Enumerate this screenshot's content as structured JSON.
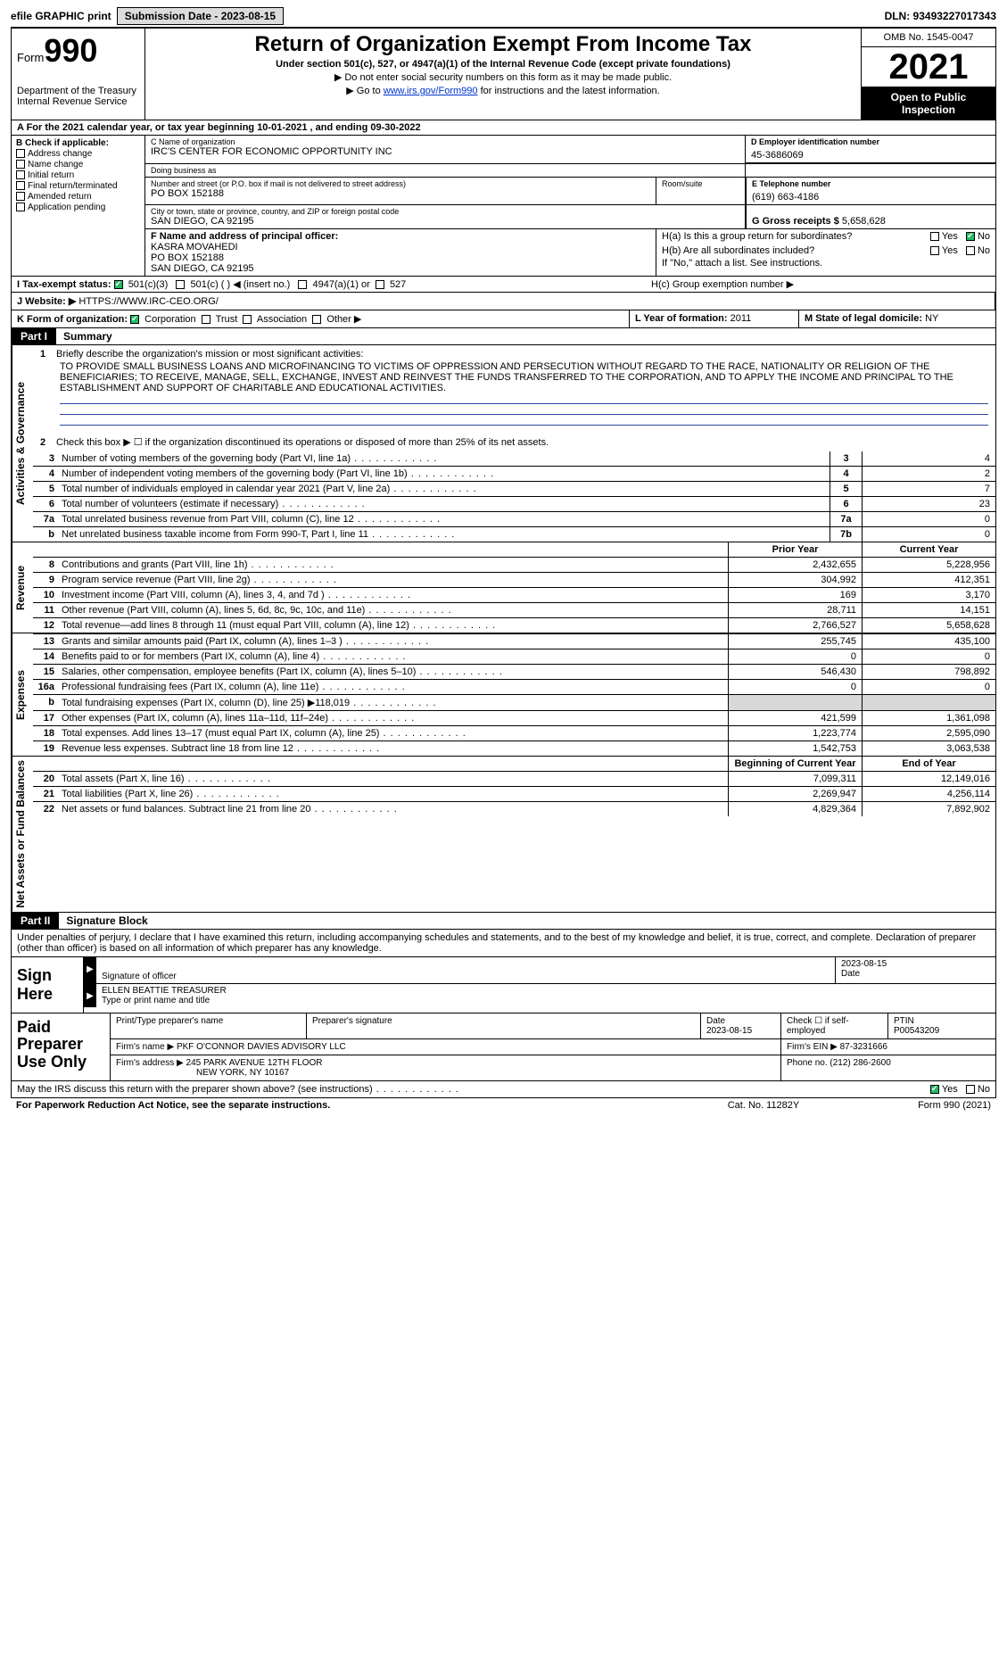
{
  "topbar": {
    "efile": "efile GRAPHIC print",
    "submission": "Submission Date - 2023-08-15",
    "dln": "DLN: 93493227017343"
  },
  "header": {
    "form_prefix": "Form",
    "form_no": "990",
    "dept": "Department of the Treasury",
    "irs": "Internal Revenue Service",
    "title": "Return of Organization Exempt From Income Tax",
    "sub": "Under section 501(c), 527, or 4947(a)(1) of the Internal Revenue Code (except private foundations)",
    "note1": "Do not enter social security numbers on this form as it may be made public.",
    "note2_pre": "Go to ",
    "note2_link": "www.irs.gov/Form990",
    "note2_post": " for instructions and the latest information.",
    "omb": "OMB No. 1545-0047",
    "year": "2021",
    "open": "Open to Public Inspection"
  },
  "row_a": "A  For the 2021 calendar year, or tax year beginning 10-01-2021     , and ending 09-30-2022",
  "col_b": {
    "hdr": "B Check if applicable:",
    "addr_change": "Address change",
    "name_change": "Name change",
    "initial": "Initial return",
    "final": "Final return/terminated",
    "amended": "Amended return",
    "app_pending": "Application pending"
  },
  "block_c": {
    "name_lbl": "C Name of organization",
    "name": "IRC'S CENTER FOR ECONOMIC OPPORTUNITY INC",
    "dba_lbl": "Doing business as",
    "dba": "",
    "addr_lbl": "Number and street (or P.O. box if mail is not delivered to street address)",
    "addr": "PO BOX 152188",
    "suite_lbl": "Room/suite",
    "city_lbl": "City or town, state or province, country, and ZIP or foreign postal code",
    "city": "SAN DIEGO, CA  92195"
  },
  "block_d": {
    "lbl": "D Employer identification number",
    "val": "45-3686069"
  },
  "block_e": {
    "lbl": "E Telephone number",
    "val": "(619) 663-4186"
  },
  "block_g": {
    "lbl": "G Gross receipts $",
    "val": "5,658,628"
  },
  "block_f": {
    "lbl": "F  Name and address of principal officer:",
    "name": "KASRA MOVAHEDI",
    "addr1": "PO BOX 152188",
    "addr2": "SAN DIEGO, CA  92195"
  },
  "block_h": {
    "ha": "H(a)  Is this a group return for subordinates?",
    "hb": "H(b)  Are all subordinates included?",
    "hb_note": "If \"No,\" attach a list. See instructions.",
    "hc": "H(c)  Group exemption number ▶",
    "yes": "Yes",
    "no": "No"
  },
  "row_i": {
    "lbl": "I   Tax-exempt status:",
    "o1": "501(c)(3)",
    "o2": "501(c) (  ) ◀ (insert no.)",
    "o3": "4947(a)(1) or",
    "o4": "527"
  },
  "row_j": {
    "lbl": "J   Website: ▶",
    "val": "HTTPS://WWW.IRC-CEO.ORG/"
  },
  "row_k": {
    "lbl": "K Form of organization:",
    "corp": "Corporation",
    "trust": "Trust",
    "assoc": "Association",
    "other": "Other ▶"
  },
  "row_l": {
    "lbl": "L Year of formation:",
    "val": "2011"
  },
  "row_m": {
    "lbl": "M State of legal domicile:",
    "val": "NY"
  },
  "part1": {
    "tab": "Part I",
    "title": "Summary"
  },
  "summary": {
    "vlabels": {
      "ag": "Activities & Governance",
      "rev": "Revenue",
      "exp": "Expenses",
      "nab": "Net Assets or Fund Balances"
    },
    "l1_lbl": "Briefly describe the organization's mission or most significant activities:",
    "l1_txt": "TO PROVIDE SMALL BUSINESS LOANS AND MICROFINANCING TO VICTIMS OF OPPRESSION AND PERSECUTION WITHOUT REGARD TO THE RACE, NATIONALITY OR RELIGION OF THE BENEFICIARIES; TO RECEIVE, MANAGE, SELL, EXCHANGE, INVEST AND REINVEST THE FUNDS TRANSFERRED TO THE CORPORATION, AND TO APPLY THE INCOME AND PRINCIPAL TO THE ESTABLISHMENT AND SUPPORT OF CHARITABLE AND EDUCATIONAL ACTIVITIES.",
    "l2": "Check this box ▶ ☐  if the organization discontinued its operations or disposed of more than 25% of its net assets.",
    "lines": [
      {
        "n": "3",
        "d": "Number of voting members of the governing body (Part VI, line 1a)",
        "box": "3",
        "v": "4"
      },
      {
        "n": "4",
        "d": "Number of independent voting members of the governing body (Part VI, line 1b)",
        "box": "4",
        "v": "2"
      },
      {
        "n": "5",
        "d": "Total number of individuals employed in calendar year 2021 (Part V, line 2a)",
        "box": "5",
        "v": "7"
      },
      {
        "n": "6",
        "d": "Total number of volunteers (estimate if necessary)",
        "box": "6",
        "v": "23"
      },
      {
        "n": "7a",
        "d": "Total unrelated business revenue from Part VIII, column (C), line 12",
        "box": "7a",
        "v": "0"
      },
      {
        "n": "b",
        "d": "Net unrelated business taxable income from Form 990-T, Part I, line 11",
        "box": "7b",
        "v": "0"
      }
    ],
    "col_hdr_prior": "Prior Year",
    "col_hdr_curr": "Current Year",
    "rev": [
      {
        "n": "8",
        "d": "Contributions and grants (Part VIII, line 1h)",
        "pv": "2,432,655",
        "v": "5,228,956"
      },
      {
        "n": "9",
        "d": "Program service revenue (Part VIII, line 2g)",
        "pv": "304,992",
        "v": "412,351"
      },
      {
        "n": "10",
        "d": "Investment income (Part VIII, column (A), lines 3, 4, and 7d )",
        "pv": "169",
        "v": "3,170"
      },
      {
        "n": "11",
        "d": "Other revenue (Part VIII, column (A), lines 5, 6d, 8c, 9c, 10c, and 11e)",
        "pv": "28,711",
        "v": "14,151"
      },
      {
        "n": "12",
        "d": "Total revenue—add lines 8 through 11 (must equal Part VIII, column (A), line 12)",
        "pv": "2,766,527",
        "v": "5,658,628"
      }
    ],
    "exp": [
      {
        "n": "13",
        "d": "Grants and similar amounts paid (Part IX, column (A), lines 1–3 )",
        "pv": "255,745",
        "v": "435,100"
      },
      {
        "n": "14",
        "d": "Benefits paid to or for members (Part IX, column (A), line 4)",
        "pv": "0",
        "v": "0"
      },
      {
        "n": "15",
        "d": "Salaries, other compensation, employee benefits (Part IX, column (A), lines 5–10)",
        "pv": "546,430",
        "v": "798,892"
      },
      {
        "n": "16a",
        "d": "Professional fundraising fees (Part IX, column (A), line 11e)",
        "pv": "0",
        "v": "0"
      },
      {
        "n": "b",
        "d": "Total fundraising expenses (Part IX, column (D), line 25) ▶118,019",
        "pv": "",
        "v": "",
        "gray": true
      },
      {
        "n": "17",
        "d": "Other expenses (Part IX, column (A), lines 11a–11d, 11f–24e)",
        "pv": "421,599",
        "v": "1,361,098"
      },
      {
        "n": "18",
        "d": "Total expenses. Add lines 13–17 (must equal Part IX, column (A), line 25)",
        "pv": "1,223,774",
        "v": "2,595,090"
      },
      {
        "n": "19",
        "d": "Revenue less expenses. Subtract line 18 from line 12",
        "pv": "1,542,753",
        "v": "3,063,538"
      }
    ],
    "col_hdr_boy": "Beginning of Current Year",
    "col_hdr_eoy": "End of Year",
    "nab": [
      {
        "n": "20",
        "d": "Total assets (Part X, line 16)",
        "pv": "7,099,311",
        "v": "12,149,016"
      },
      {
        "n": "21",
        "d": "Total liabilities (Part X, line 26)",
        "pv": "2,269,947",
        "v": "4,256,114"
      },
      {
        "n": "22",
        "d": "Net assets or fund balances. Subtract line 21 from line 20",
        "pv": "4,829,364",
        "v": "7,892,902"
      }
    ]
  },
  "part2": {
    "tab": "Part II",
    "title": "Signature Block"
  },
  "sig": {
    "decl": "Under penalties of perjury, I declare that I have examined this return, including accompanying schedules and statements, and to the best of my knowledge and belief, it is true, correct, and complete. Declaration of preparer (other than officer) is based on all information of which preparer has any knowledge.",
    "sign_here": "Sign Here",
    "sig_officer_lbl": "Signature of officer",
    "date_lbl": "Date",
    "date_val": "2023-08-15",
    "name_title": "ELLEN BEATTIE  TREASURER",
    "name_title_lbl": "Type or print name and title"
  },
  "prep": {
    "lab": "Paid Preparer Use Only",
    "col_name": "Print/Type preparer's name",
    "col_sig": "Preparer's signature",
    "col_date": "Date",
    "date_val": "2023-08-15",
    "check_lbl": "Check ☐ if self-employed",
    "ptin_lbl": "PTIN",
    "ptin": "P00543209",
    "firm_name_lbl": "Firm's name    ▶",
    "firm_name": "PKF O'CONNOR DAVIES ADVISORY LLC",
    "firm_ein_lbl": "Firm's EIN ▶",
    "firm_ein": "87-3231666",
    "firm_addr_lbl": "Firm's address ▶",
    "firm_addr1": "245 PARK AVENUE 12TH FLOOR",
    "firm_addr2": "NEW YORK, NY  10167",
    "phone_lbl": "Phone no.",
    "phone": "(212) 286-2600"
  },
  "may": {
    "q": "May the IRS discuss this return with the preparer shown above? (see instructions)",
    "yes": "Yes",
    "no": "No"
  },
  "footer": {
    "l": "For Paperwork Reduction Act Notice, see the separate instructions.",
    "m": "Cat. No. 11282Y",
    "r": "Form 990 (2021)"
  }
}
